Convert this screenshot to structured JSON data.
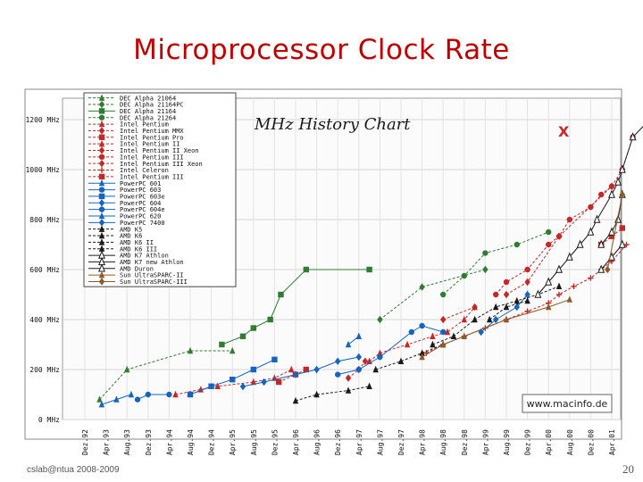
{
  "slide": {
    "title": "Microprocessor Clock Rate",
    "footer": "cslab@ntua 2008-2009",
    "page_number": "20"
  },
  "chart_data": {
    "type": "scatter",
    "title": "MHz History Chart",
    "watermark": "www.macinfo.de",
    "marker_note": "X",
    "xlabel": "",
    "ylabel": "",
    "ylim": [
      0,
      1250
    ],
    "grid": true,
    "legend_position": "top-left",
    "x_ticks": [
      "Dez.92",
      "Apr.93",
      "Aug.93",
      "Dez.93",
      "Apr.94",
      "Aug.94",
      "Dez.94",
      "Apr.95",
      "Aug.95",
      "Dez.95",
      "Apr.96",
      "Aug.96",
      "Dez.96",
      "Apr.97",
      "Aug.97",
      "Dez.97",
      "Apr.98",
      "Aug.98",
      "Dez.98",
      "Apr.99",
      "Aug.99",
      "Dez.99",
      "Apr.00",
      "Aug.00",
      "Dez.00",
      "Apr.01"
    ],
    "y_ticks": [
      {
        "value": 0,
        "label": "0 MHz"
      },
      {
        "value": 200,
        "label": "200 MHz"
      },
      {
        "value": 400,
        "label": "400 MHz"
      },
      {
        "value": 600,
        "label": "600 MHz"
      },
      {
        "value": 800,
        "label": "800 MHz"
      },
      {
        "value": 1000,
        "label": "1000 MHz"
      },
      {
        "value": 1200,
        "label": "1200 MHz"
      }
    ],
    "series": [
      {
        "name": "DEC Alpha 21064",
        "color": "#2e7d32",
        "marker": "triangle",
        "dash": true,
        "points": [
          [
            0.7,
            80
          ],
          [
            2,
            200
          ],
          [
            5,
            275
          ],
          [
            7,
            275
          ]
        ]
      },
      {
        "name": "DEC Alpha 21164PC",
        "color": "#2e7d32",
        "marker": "diamond",
        "dash": true,
        "points": [
          [
            14,
            400
          ],
          [
            16,
            530
          ],
          [
            19,
            600
          ]
        ]
      },
      {
        "name": "DEC Alpha 21164",
        "color": "#2e7d32",
        "marker": "square",
        "dash": false,
        "points": [
          [
            6.5,
            300
          ],
          [
            7.5,
            333
          ],
          [
            8,
            366
          ],
          [
            8.8,
            400
          ],
          [
            9.3,
            500
          ],
          [
            10.5,
            600
          ],
          [
            13.5,
            600
          ]
        ]
      },
      {
        "name": "DEC Alpha 21264",
        "color": "#2e7d32",
        "marker": "circle",
        "dash": true,
        "points": [
          [
            17,
            500
          ],
          [
            18,
            575
          ],
          [
            19,
            666
          ],
          [
            20.5,
            700
          ],
          [
            22,
            750
          ]
        ]
      },
      {
        "name": "Intel Pentium",
        "color": "#c62828",
        "marker": "triangle",
        "dash": true,
        "points": [
          [
            4.3,
            100
          ],
          [
            5.5,
            120
          ],
          [
            6.3,
            133
          ],
          [
            8,
            150
          ],
          [
            9,
            166
          ],
          [
            9.8,
            200
          ]
        ]
      },
      {
        "name": "Intel Pentium MMX",
        "color": "#c62828",
        "marker": "diamond",
        "dash": true,
        "points": [
          [
            12.5,
            166
          ],
          [
            13,
            200
          ],
          [
            13.3,
            233
          ]
        ]
      },
      {
        "name": "Intel Pentium Pro",
        "color": "#c62828",
        "marker": "square",
        "dash": true,
        "points": [
          [
            9.2,
            150
          ],
          [
            10,
            180
          ],
          [
            10.5,
            200
          ]
        ]
      },
      {
        "name": "Intel Pentium II",
        "color": "#c62828",
        "marker": "triangle",
        "dash": true,
        "points": [
          [
            13.5,
            233
          ],
          [
            14,
            266
          ],
          [
            15.3,
            300
          ],
          [
            16.5,
            333
          ],
          [
            17.2,
            350
          ],
          [
            18,
            400
          ],
          [
            18.5,
            450
          ]
        ]
      },
      {
        "name": "Intel Pentium II Xeon",
        "color": "#c62828",
        "marker": "diamond",
        "dash": true,
        "points": [
          [
            17,
            400
          ],
          [
            18.5,
            450
          ]
        ]
      },
      {
        "name": "Intel Pentium III",
        "color": "#c62828",
        "marker": "circle",
        "dash": true,
        "points": [
          [
            19.5,
            500
          ],
          [
            20,
            550
          ],
          [
            21,
            600
          ],
          [
            22,
            700
          ],
          [
            22.5,
            733
          ],
          [
            23,
            800
          ],
          [
            24,
            850
          ],
          [
            24.5,
            900
          ],
          [
            25,
            933
          ],
          [
            25.5,
            1000
          ],
          [
            26,
            1130
          ]
        ]
      },
      {
        "name": "Intel Pentium III Xeon",
        "color": "#c62828",
        "marker": "diamond",
        "dash": true,
        "points": [
          [
            20,
            500
          ],
          [
            21,
            550
          ],
          [
            22.5,
            733
          ],
          [
            25,
            933
          ]
        ]
      },
      {
        "name": "Intel Celeron",
        "color": "#c62828",
        "marker": "plus",
        "dash": true,
        "points": [
          [
            16.2,
            266
          ],
          [
            17,
            300
          ],
          [
            18,
            333
          ],
          [
            19,
            366
          ],
          [
            20,
            400
          ],
          [
            21,
            433
          ],
          [
            22,
            466
          ],
          [
            22.5,
            500
          ],
          [
            23.2,
            533
          ],
          [
            24,
            566
          ],
          [
            24.5,
            600
          ],
          [
            25,
            633
          ],
          [
            25.7,
            700
          ]
        ]
      },
      {
        "name": "Intel Pentium III",
        "color": "#c62828",
        "marker": "square",
        "dash": true,
        "points": [
          [
            24.5,
            700
          ],
          [
            25,
            733
          ],
          [
            25.5,
            766
          ]
        ]
      },
      {
        "name": "PowerPC 601",
        "color": "#1565c0",
        "marker": "triangle",
        "dash": false,
        "points": [
          [
            0.8,
            60
          ],
          [
            1.5,
            80
          ],
          [
            2.2,
            100
          ]
        ]
      },
      {
        "name": "PowerPC 603",
        "color": "#1565c0",
        "marker": "circle",
        "dash": false,
        "points": [
          [
            2.5,
            80
          ],
          [
            3,
            100
          ],
          [
            4,
            100
          ]
        ]
      },
      {
        "name": "PowerPC 603e",
        "color": "#1565c0",
        "marker": "square",
        "dash": false,
        "points": [
          [
            5,
            100
          ],
          [
            6,
            133
          ],
          [
            7,
            160
          ],
          [
            8,
            200
          ],
          [
            9,
            240
          ]
        ]
      },
      {
        "name": "PowerPC 604",
        "color": "#1565c0",
        "marker": "diamond",
        "dash": false,
        "points": [
          [
            7.5,
            132
          ],
          [
            8.5,
            150
          ],
          [
            10,
            180
          ],
          [
            11,
            200
          ],
          [
            12,
            233
          ],
          [
            13,
            250
          ]
        ]
      },
      {
        "name": "PowerPC 604e",
        "color": "#1565c0",
        "marker": "circle",
        "dash": false,
        "points": [
          [
            12,
            180
          ],
          [
            13,
            200
          ],
          [
            14,
            250
          ],
          [
            15.5,
            350
          ],
          [
            16,
            375
          ],
          [
            17,
            350
          ]
        ]
      },
      {
        "name": "PowerPC 620",
        "color": "#1565c0",
        "marker": "triangle",
        "dash": false,
        "points": [
          [
            12.5,
            300
          ],
          [
            13,
            333
          ]
        ]
      },
      {
        "name": "PowerPC 7400",
        "color": "#1565c0",
        "marker": "diamond",
        "dash": false,
        "points": [
          [
            18.8,
            350
          ],
          [
            19.5,
            400
          ],
          [
            20.5,
            450
          ],
          [
            21,
            500
          ]
        ]
      },
      {
        "name": "AMD K5",
        "color": "#1a1a1a",
        "marker": "triangle",
        "dash": true,
        "points": [
          [
            10,
            75
          ],
          [
            11,
            100
          ],
          [
            12.5,
            116
          ],
          [
            13.5,
            133
          ]
        ]
      },
      {
        "name": "AMD K6",
        "color": "#1a1a1a",
        "marker": "triangle",
        "dash": true,
        "points": [
          [
            13.8,
            200
          ],
          [
            15,
            233
          ],
          [
            16,
            266
          ],
          [
            17,
            300
          ]
        ]
      },
      {
        "name": "AMD K6 II",
        "color": "#1a1a1a",
        "marker": "triangle",
        "dash": true,
        "points": [
          [
            16.5,
            300
          ],
          [
            17.5,
            333
          ],
          [
            18.5,
            400
          ],
          [
            19.5,
            450
          ],
          [
            20.5,
            475
          ],
          [
            21.5,
            500
          ],
          [
            22.5,
            533
          ]
        ]
      },
      {
        "name": "AMD K6 III",
        "color": "#1a1a1a",
        "marker": "triangle",
        "dash": true,
        "points": [
          [
            19.2,
            400
          ],
          [
            20,
            450
          ],
          [
            21,
            475
          ]
        ]
      },
      {
        "name": "AMD K7 Athlon",
        "color": "#1a1a1a",
        "marker": "triangle-open",
        "dash": false,
        "points": [
          [
            21.5,
            500
          ],
          [
            22,
            550
          ],
          [
            22.5,
            600
          ],
          [
            23,
            650
          ],
          [
            23.5,
            700
          ],
          [
            24,
            750
          ],
          [
            24.3,
            800
          ],
          [
            25,
            900
          ],
          [
            25.3,
            950
          ],
          [
            25.5,
            1000
          ],
          [
            26,
            1130
          ],
          [
            26.8,
            1200
          ]
        ]
      },
      {
        "name": "AMD K7 new Athlon",
        "color": "#1a1a1a",
        "marker": "triangle-open",
        "dash": false,
        "points": [
          [
            24.5,
            700
          ],
          [
            25,
            750
          ],
          [
            25.3,
            800
          ],
          [
            25.5,
            900
          ]
        ]
      },
      {
        "name": "AMD Duron",
        "color": "#1a1a1a",
        "marker": "triangle-open",
        "dash": false,
        "points": [
          [
            24.5,
            600
          ],
          [
            25,
            650
          ],
          [
            25.5,
            700
          ]
        ]
      },
      {
        "name": "Sun UltraSPARC-II",
        "color": "#8d5a2b",
        "marker": "triangle",
        "dash": false,
        "points": [
          [
            16,
            250
          ],
          [
            17,
            300
          ],
          [
            18,
            333
          ],
          [
            20,
            400
          ],
          [
            22,
            450
          ],
          [
            23,
            480
          ]
        ]
      },
      {
        "name": "Sun UltraSPARC-III",
        "color": "#8d5a2b",
        "marker": "diamond",
        "dash": false,
        "points": [
          [
            24.8,
            600
          ],
          [
            25.5,
            900
          ]
        ]
      }
    ]
  }
}
